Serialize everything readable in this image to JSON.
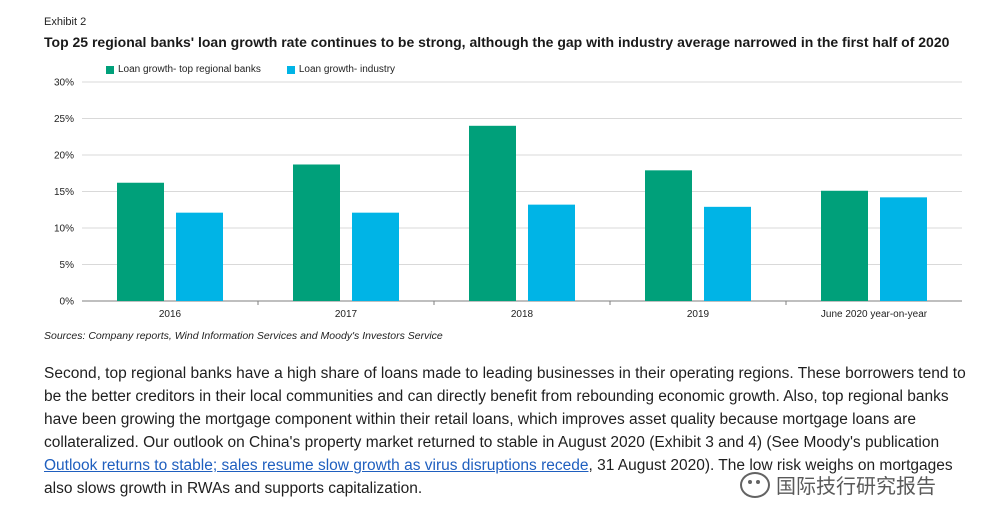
{
  "exhibit": "Exhibit 2",
  "source": "Sources: Company reports, Wind Information Services and Moody's Investors Service",
  "body": {
    "p1_before_link": "Second, top regional banks have a high share of loans made to leading businesses in their operating regions. These borrowers tend to be the better creditors in their local communities and can directly benefit from rebounding economic growth. Also, top regional banks have been growing the mortgage component within their retail loans, which improves asset quality because mortgage loans are collateralized. Our outlook on China's property market returned to stable in August 2020 (Exhibit 3 and 4) (See Moody's publication ",
    "link_text": "Outlook returns to stable; sales resume slow growth as virus disruptions recede",
    "p1_after_link": ", 31 August 2020). The low risk weighs on mortgages also slows growth in RWAs and supports capitalization."
  },
  "watermark": "国际技行研究报告",
  "colors": {
    "series1": "#00a07a",
    "series2": "#00b4e6",
    "grid": "#d9d9d9",
    "axis": "#7f7f7f"
  },
  "chart_data": {
    "type": "bar",
    "title": "Top 25 regional banks' loan growth rate continues to be strong, although the gap with industry average narrowed in the first half of 2020",
    "categories": [
      "2016",
      "2017",
      "2018",
      "2019",
      "June 2020 year-on-year"
    ],
    "series": [
      {
        "name": "Loan growth- top regional banks",
        "values": [
          16.2,
          18.7,
          24.0,
          17.9,
          15.1
        ]
      },
      {
        "name": "Loan growth- industry",
        "values": [
          12.1,
          12.1,
          13.2,
          12.9,
          14.2
        ]
      }
    ],
    "ylim": [
      0,
      30
    ],
    "yticks": [
      "0%",
      "5%",
      "10%",
      "15%",
      "20%",
      "25%",
      "30%"
    ],
    "ytick_values": [
      0,
      5,
      10,
      15,
      20,
      25,
      30
    ],
    "grid": true,
    "legend_position": "top-left"
  }
}
